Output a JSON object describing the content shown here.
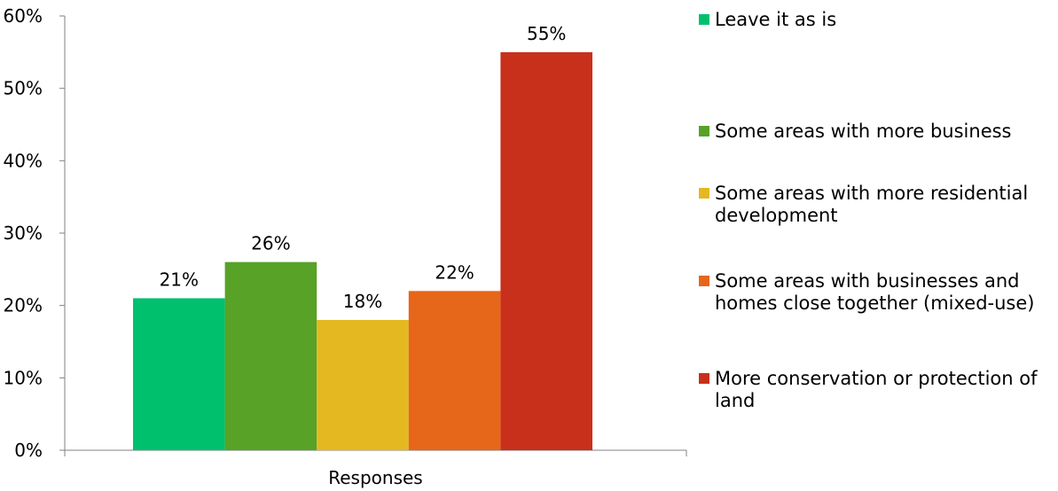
{
  "chart_data": {
    "type": "bar",
    "categories": [
      "Responses"
    ],
    "series": [
      {
        "name": "Leave it as is",
        "values": [
          21
        ],
        "label": "21%",
        "color": "#00c06e"
      },
      {
        "name": "Some areas with more business",
        "values": [
          26
        ],
        "label": "26%",
        "color": "#57a227"
      },
      {
        "name": "Some areas with more residential development",
        "values": [
          18
        ],
        "label": "18%",
        "color": "#e4b820"
      },
      {
        "name": "Some areas with businesses and homes close together (mixed-use)",
        "values": [
          22
        ],
        "label": "22%",
        "color": "#e6661a"
      },
      {
        "name": "More conservation or protection of land",
        "values": [
          55
        ],
        "label": "55%",
        "color": "#c8301c"
      }
    ],
    "y_ticks": [
      "0%",
      "10%",
      "20%",
      "30%",
      "40%",
      "50%",
      "60%"
    ],
    "ylim": [
      0,
      60
    ],
    "xlabel": "",
    "ylabel": "",
    "title": "",
    "grid": false,
    "legend_position": "right"
  }
}
